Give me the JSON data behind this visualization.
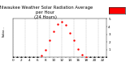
{
  "title": "Milwaukee Weather Solar Radiation Average\nper Hour\n(24 Hours)",
  "left_label": "Solar...",
  "hours": [
    0,
    1,
    2,
    3,
    4,
    5,
    6,
    7,
    8,
    9,
    10,
    11,
    12,
    13,
    14,
    15,
    16,
    17,
    18,
    19,
    20,
    21,
    22,
    23
  ],
  "solar_radiation": [
    0,
    0,
    0,
    0,
    0,
    0,
    2,
    18,
    85,
    190,
    295,
    370,
    400,
    360,
    275,
    195,
    95,
    28,
    4,
    0,
    0,
    0,
    0,
    0
  ],
  "dot_color": "#ff0000",
  "black_dot_color": "#000000",
  "bg_color": "#ffffff",
  "grid_color": "#888888",
  "legend_box_color": "#ff0000",
  "ylim": [
    0,
    430
  ],
  "xlim": [
    0,
    23
  ],
  "ytick_labels": [
    "1",
    "2",
    "3",
    "4",
    "5"
  ],
  "ytick_values": [
    86,
    172,
    258,
    344,
    430
  ],
  "title_fontsize": 3.8,
  "tick_fontsize": 3.0,
  "label_fontsize": 3.0,
  "grid_hours": [
    0,
    3,
    6,
    9,
    12,
    15,
    18,
    21
  ]
}
